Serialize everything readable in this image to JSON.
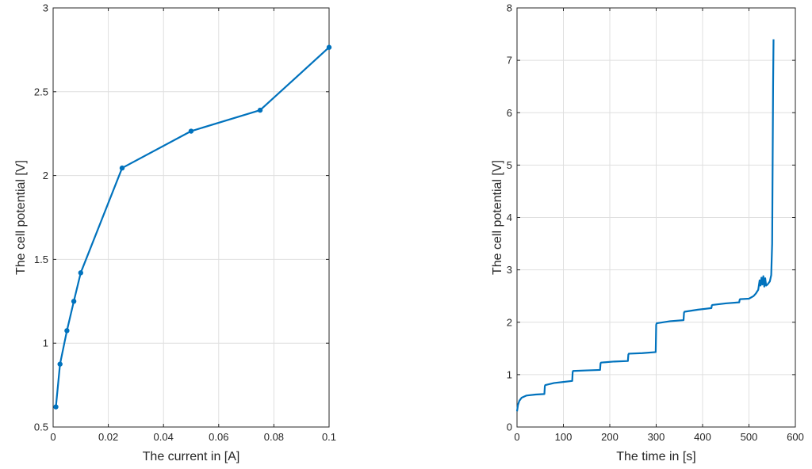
{
  "colors": {
    "series": "#0072BD",
    "axis": "#262626",
    "grid": "#dfdfdf"
  },
  "chart_data": [
    {
      "type": "line",
      "markers": true,
      "grid": true,
      "title": "",
      "xlabel": "The current in [A]",
      "ylabel": "The cell potential [V]",
      "xlim": [
        0,
        0.1
      ],
      "ylim": [
        0.5,
        3
      ],
      "xticks": [
        0,
        0.02,
        0.04,
        0.06,
        0.08,
        0.1
      ],
      "xtick_labels": [
        "0",
        "0.02",
        "0.04",
        "0.06",
        "0.08",
        "0.1"
      ],
      "yticks": [
        0.5,
        1,
        1.5,
        2,
        2.5,
        3
      ],
      "ytick_labels": [
        "0.5",
        "1",
        "1.5",
        "2",
        "2.5",
        "3"
      ],
      "series": [
        {
          "x": [
            0.001,
            0.0025,
            0.005,
            0.0075,
            0.01,
            0.025,
            0.05,
            0.075,
            0.1
          ],
          "y": [
            0.62,
            0.875,
            1.075,
            1.25,
            1.42,
            2.045,
            2.265,
            2.39,
            2.765
          ]
        }
      ]
    },
    {
      "type": "line",
      "markers": false,
      "grid": true,
      "title": "",
      "xlabel": "The time in [s]",
      "ylabel": "The cell potential [V]",
      "xlim": [
        0,
        600
      ],
      "ylim": [
        0,
        8
      ],
      "xticks": [
        0,
        100,
        200,
        300,
        400,
        500,
        600
      ],
      "xtick_labels": [
        "0",
        "100",
        "200",
        "300",
        "400",
        "500",
        "600"
      ],
      "yticks": [
        0,
        1,
        2,
        3,
        4,
        5,
        6,
        7,
        8
      ],
      "ytick_labels": [
        "0",
        "1",
        "2",
        "3",
        "4",
        "5",
        "6",
        "7",
        "8"
      ],
      "series": [
        {
          "x": [
            0,
            2,
            5,
            10,
            20,
            40,
            59,
            60,
            61,
            80,
            100,
            119,
            120,
            121,
            150,
            179,
            180,
            181,
            210,
            239,
            240,
            241,
            270,
            299,
            300,
            301,
            330,
            359,
            360,
            361,
            390,
            419,
            420,
            421,
            450,
            479,
            480,
            481,
            500,
            510,
            515,
            520,
            523,
            525,
            527,
            529,
            531,
            533,
            535,
            537,
            540,
            545,
            548,
            550,
            551,
            552,
            553
          ],
          "y": [
            0.3,
            0.42,
            0.5,
            0.56,
            0.6,
            0.62,
            0.63,
            0.78,
            0.8,
            0.84,
            0.86,
            0.88,
            1.05,
            1.07,
            1.08,
            1.09,
            1.21,
            1.23,
            1.25,
            1.26,
            1.38,
            1.4,
            1.41,
            1.43,
            1.95,
            1.98,
            2.02,
            2.04,
            2.18,
            2.2,
            2.24,
            2.27,
            2.32,
            2.33,
            2.36,
            2.38,
            2.43,
            2.44,
            2.45,
            2.5,
            2.55,
            2.62,
            2.8,
            2.7,
            2.85,
            2.72,
            2.88,
            2.68,
            2.84,
            2.7,
            2.72,
            2.78,
            2.9,
            3.5,
            5.0,
            6.5,
            7.4
          ]
        }
      ]
    }
  ]
}
